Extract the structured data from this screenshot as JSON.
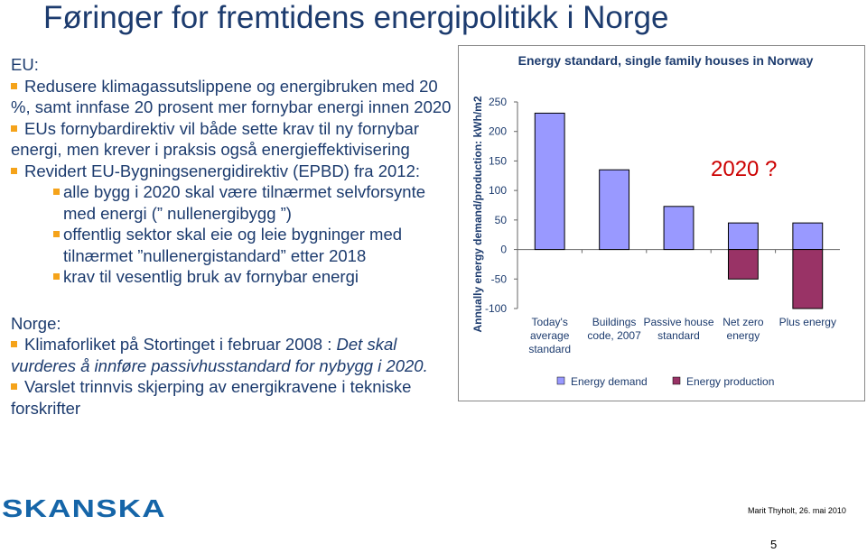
{
  "title": "Føringer for fremtidens energipolitikk i Norge",
  "sections": [
    {
      "heading": "EU:",
      "items": [
        {
          "level": 1,
          "text": "Redusere klimagassutslippene og energibruken med 20 %, samt innfase 20 prosent mer fornybar energi innen 2020"
        },
        {
          "level": 1,
          "text": "EUs fornybardirektiv vil både sette krav til ny fornybar energi, men krever i praksis også energieffektivisering"
        },
        {
          "level": 1,
          "text": "Revidert EU-Bygningsenergidirektiv (EPBD) fra 2012:"
        },
        {
          "level": 2,
          "text": "alle bygg i 2020 skal være tilnærmet selvforsynte med energi (” nullenergibygg ”)"
        },
        {
          "level": 2,
          "text": "offentlig sektor skal eie og leie bygninger med tilnærmet ”nullenergistandard” etter 2018"
        },
        {
          "level": 2,
          "text": "krav til vesentlig bruk av fornybar energi"
        }
      ]
    },
    {
      "heading": "Norge:",
      "items": [
        {
          "level": 1,
          "parts": [
            {
              "text": "Klimaforliket på Stortinget i februar 2008 : ",
              "italic": false
            },
            {
              "text": "Det skal vurderes å innføre passivhusstandard for nybygg i 2020.",
              "italic": true
            }
          ]
        },
        {
          "level": 1,
          "text": "Varslet trinnvis skjerping av energikravene i tekniske forskrifter"
        }
      ]
    }
  ],
  "chart_data": {
    "type": "bar",
    "stacked": true,
    "title": "Energy standard, single family houses in Norway",
    "y_label": "Annually energy demand/production: kWh/m2",
    "annotation": "2020 ?",
    "categories": [
      "Today's average standard",
      "Buildings code, 2007",
      "Passive house standard",
      "Net zero energy",
      "Plus energy"
    ],
    "series": [
      {
        "name": "Energy demand",
        "color": "#9999ff",
        "values": [
          231,
          135,
          73,
          45,
          45
        ]
      },
      {
        "name": "Energy production",
        "color": "#993366",
        "values": [
          null,
          null,
          null,
          -50,
          -100
        ]
      }
    ],
    "ylim": [
      -100,
      250
    ],
    "yticks": [
      -100,
      -50,
      0,
      50,
      100,
      150,
      200,
      250
    ],
    "legend": "bottom",
    "grid": false
  },
  "footer": {
    "logo": "SKANSKA",
    "author": "Marit Thyholt, 26. mai 2010",
    "page": "5"
  }
}
